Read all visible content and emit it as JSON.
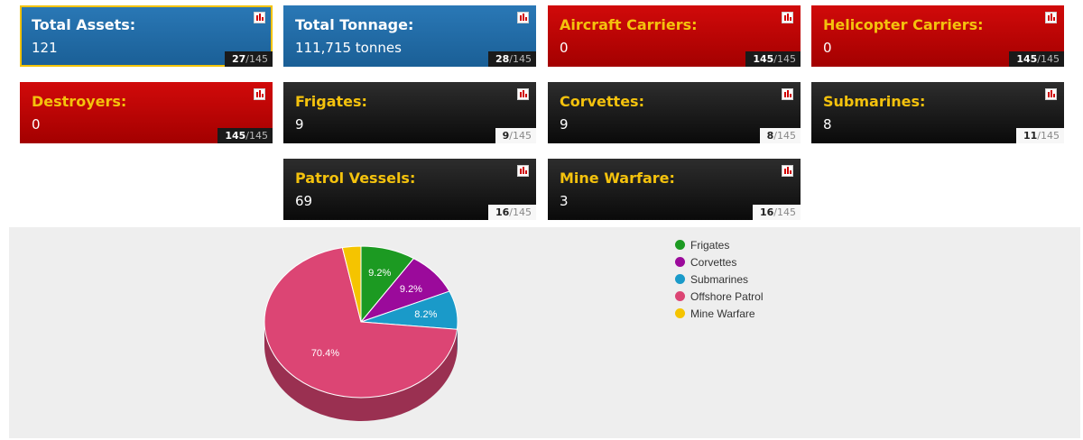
{
  "cards": [
    {
      "id": "total-assets",
      "title": "Total Assets:",
      "value": "121",
      "rank": "27",
      "total": "145",
      "theme": "blue"
    },
    {
      "id": "total-tonnage",
      "title": "Total Tonnage:",
      "value": "111,715 tonnes",
      "rank": "28",
      "total": "145",
      "theme": "blue"
    },
    {
      "id": "aircraft-carriers",
      "title": "Aircraft Carriers:",
      "value": "0",
      "rank": "145",
      "total": "145",
      "theme": "red"
    },
    {
      "id": "helicopter-carriers",
      "title": "Helicopter Carriers:",
      "value": "0",
      "rank": "145",
      "total": "145",
      "theme": "red"
    },
    {
      "id": "destroyers",
      "title": "Destroyers:",
      "value": "0",
      "rank": "145",
      "total": "145",
      "theme": "red"
    },
    {
      "id": "frigates",
      "title": "Frigates:",
      "value": "9",
      "rank": "9",
      "total": "145",
      "theme": "black"
    },
    {
      "id": "corvettes",
      "title": "Corvettes:",
      "value": "9",
      "rank": "8",
      "total": "145",
      "theme": "black"
    },
    {
      "id": "submarines",
      "title": "Submarines:",
      "value": "8",
      "rank": "11",
      "total": "145",
      "theme": "black"
    },
    {
      "id": "patrol-vessels",
      "title": "Patrol Vessels:",
      "value": "69",
      "rank": "16",
      "total": "145",
      "theme": "black"
    },
    {
      "id": "mine-warfare",
      "title": "Mine Warfare:",
      "value": "3",
      "rank": "16",
      "total": "145",
      "theme": "black"
    }
  ],
  "chart_data": {
    "type": "pie",
    "labels": [
      "Frigates",
      "Corvettes",
      "Submarines",
      "Offshore Patrol",
      "Mine Warfare"
    ],
    "values": [
      9.2,
      9.2,
      8.2,
      70.4,
      3.1
    ],
    "value_labels": [
      "9.2%",
      "9.2%",
      "8.2%",
      "70.4%",
      ""
    ],
    "colors": [
      "#1c9a22",
      "#9b0a9b",
      "#1a9ac9",
      "#dc4574",
      "#f5c400"
    ],
    "legend_position": "top-right",
    "style": "3d"
  },
  "colors": {
    "blue_card": "#1f6aa5",
    "red_card": "#c00000",
    "black_card": "#1a1a1a",
    "title_accent": "#f4c20d",
    "panel_bg": "#eeeeee",
    "rank_icon": "bar-chart-icon"
  }
}
